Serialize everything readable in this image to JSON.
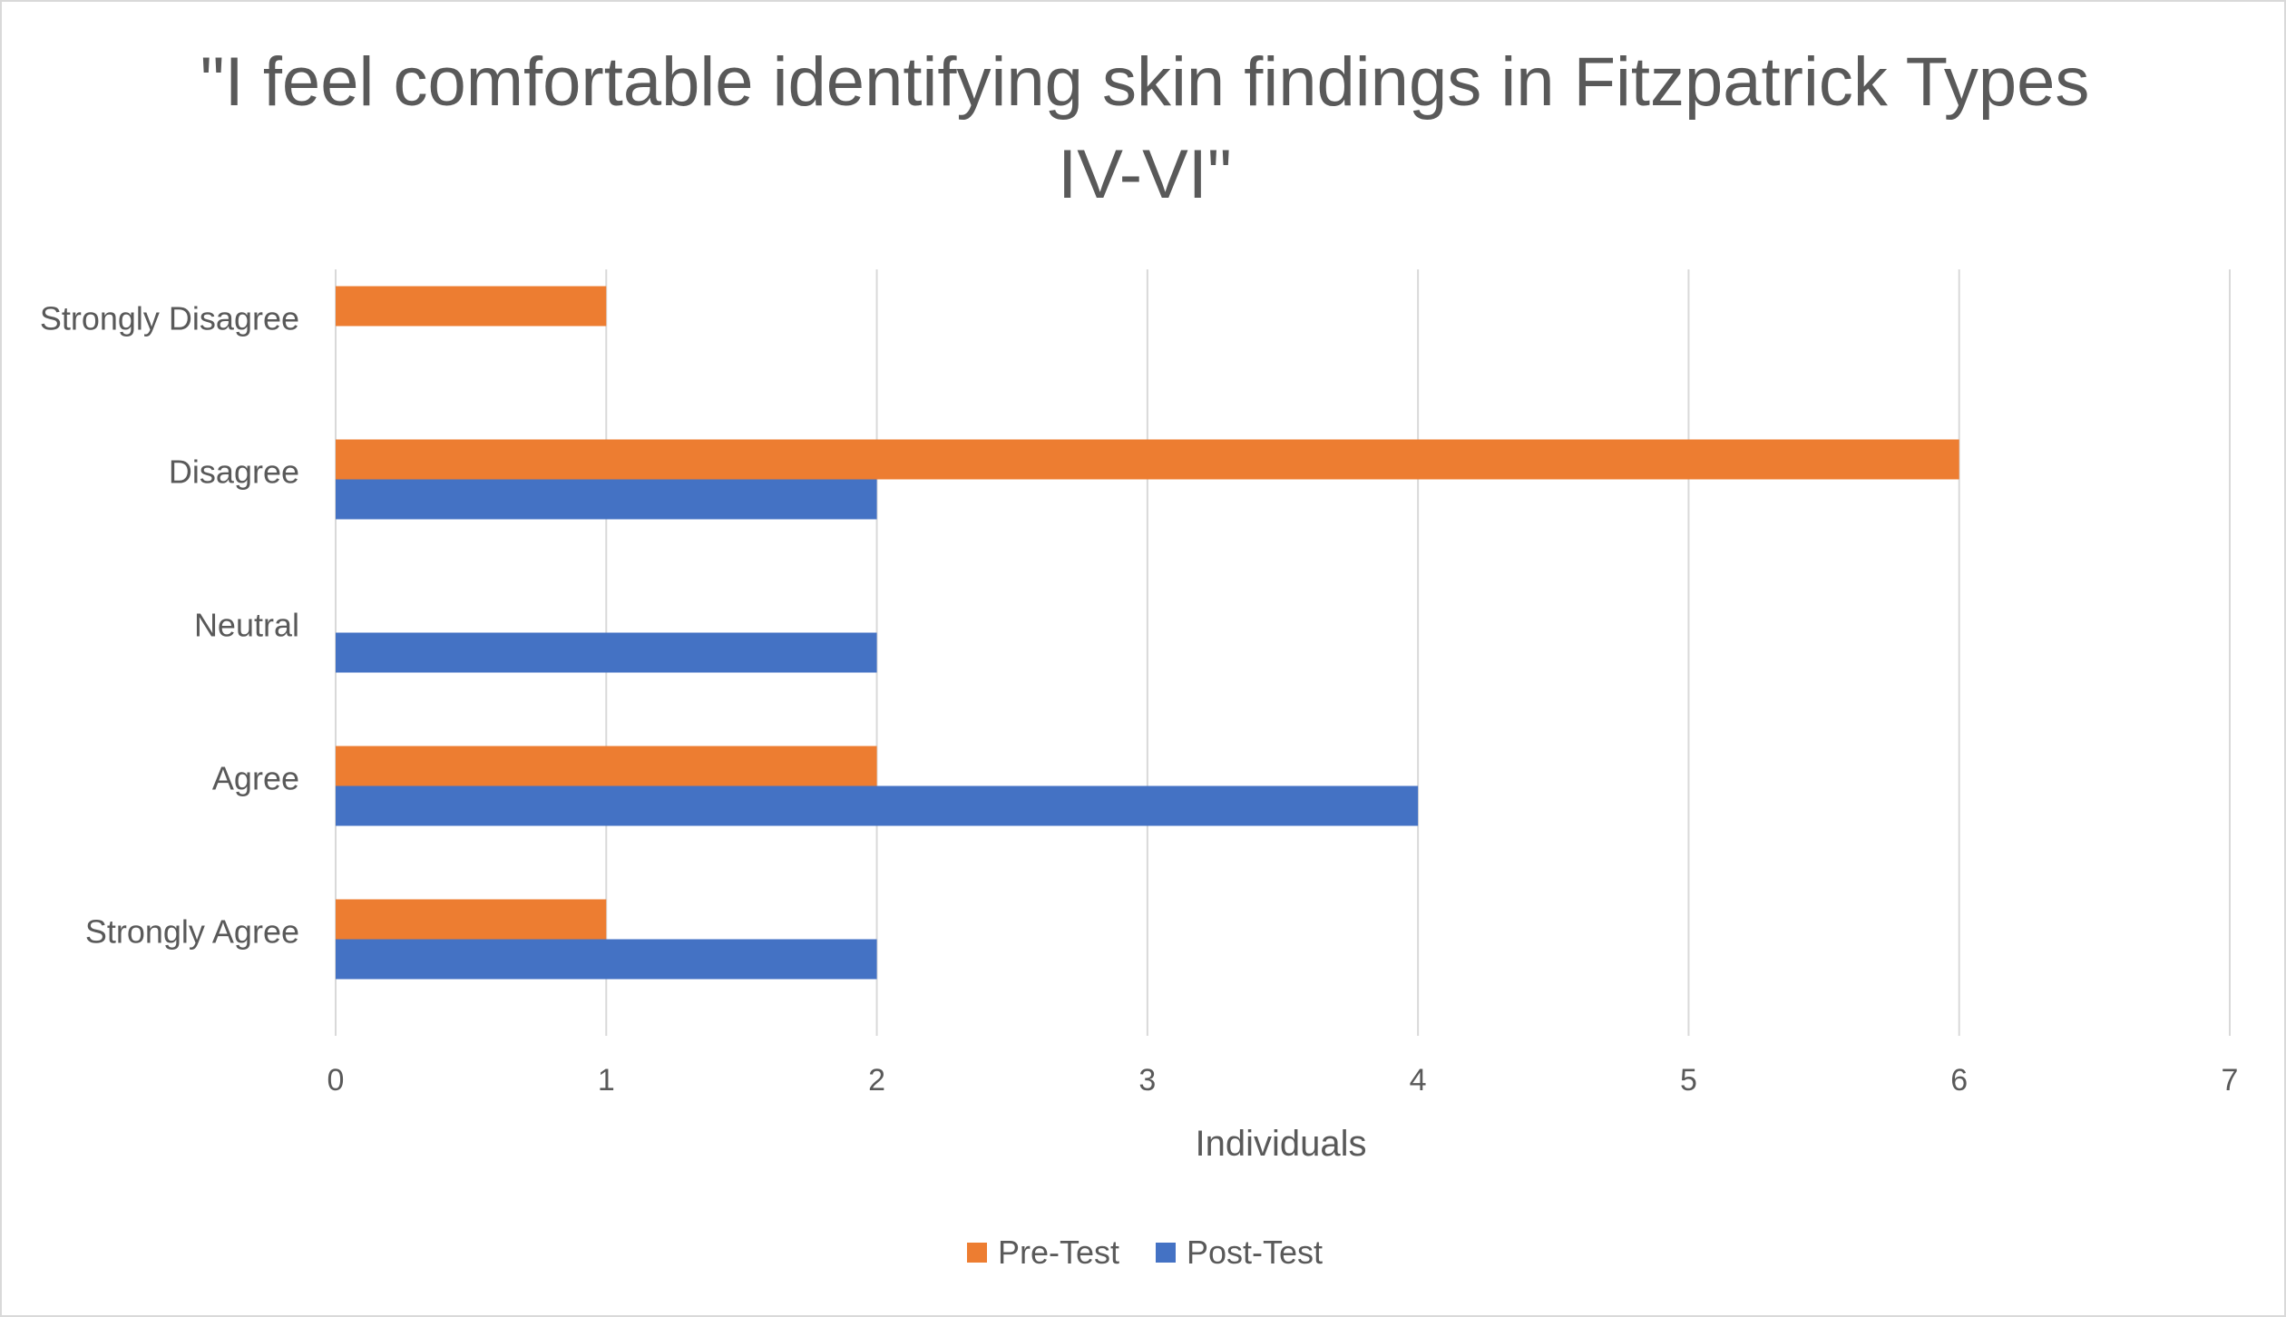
{
  "chart_data": {
    "type": "bar",
    "orientation": "horizontal",
    "title": "\"I feel comfortable identifying skin findings in Fitzpatrick Types IV-VI\"",
    "xlabel": "Individuals",
    "ylabel": "",
    "categories": [
      "Strongly Disagree",
      "Disagree",
      "Neutral",
      "Agree",
      "Strongly Agree"
    ],
    "series": [
      {
        "name": "Pre-Test",
        "color": "#ed7d31",
        "values": [
          1,
          6,
          0,
          2,
          1
        ]
      },
      {
        "name": "Post-Test",
        "color": "#4472c4",
        "values": [
          0,
          2,
          2,
          4,
          2
        ]
      }
    ],
    "xlim": [
      0,
      7
    ],
    "xticks": [
      "0",
      "1",
      "2",
      "3",
      "4",
      "5",
      "6",
      "7"
    ],
    "grid": true,
    "legend_position": "bottom"
  }
}
